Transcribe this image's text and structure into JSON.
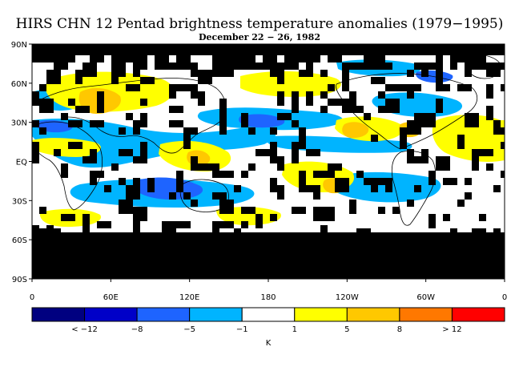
{
  "title": "HIRS CHN 12 Pentad brightness temperature anomalies (1979−1995)",
  "subtitle": "December 22 − 26, 1982",
  "map": {
    "lat_labels": [
      "90N",
      "60N",
      "30N",
      "EQ",
      "30S",
      "60S",
      "90S"
    ],
    "lon_labels": [
      "0",
      "60E",
      "120E",
      "180",
      "120W",
      "60W",
      "0"
    ],
    "missing_color": "#000000"
  },
  "colorbar": {
    "unit": "K",
    "tick_labels": [
      "< −12",
      "−8",
      "−5",
      "−1",
      "1",
      "5",
      "8",
      "> 12"
    ],
    "colors": [
      "#000080",
      "#0000c8",
      "#1e64ff",
      "#00b4ff",
      "#ffffff",
      "#ffff00",
      "#ffc800",
      "#ff7800",
      "#ff0000"
    ]
  }
}
